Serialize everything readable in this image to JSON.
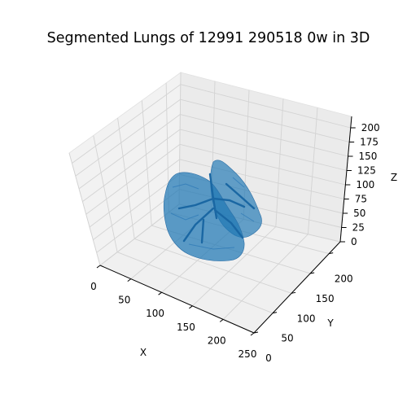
{
  "chart_data": {
    "type": "3d-voxel",
    "title": "Segmented Lungs of 12991 290518 0w in 3D",
    "xlabel": "X",
    "ylabel": "Y",
    "zlabel": "Z",
    "xticks": [
      "0",
      "50",
      "100",
      "150",
      "200",
      "250"
    ],
    "yticks": [
      "0",
      "50",
      "100",
      "150",
      "200"
    ],
    "zticks": [
      "0",
      "25",
      "50",
      "75",
      "100",
      "125",
      "150",
      "175",
      "200"
    ],
    "xlim": [
      0,
      250
    ],
    "ylim": [
      0,
      230
    ],
    "zlim": [
      0,
      220
    ],
    "grid": true,
    "series": [
      {
        "color": "#1f77b4"
      }
    ]
  }
}
